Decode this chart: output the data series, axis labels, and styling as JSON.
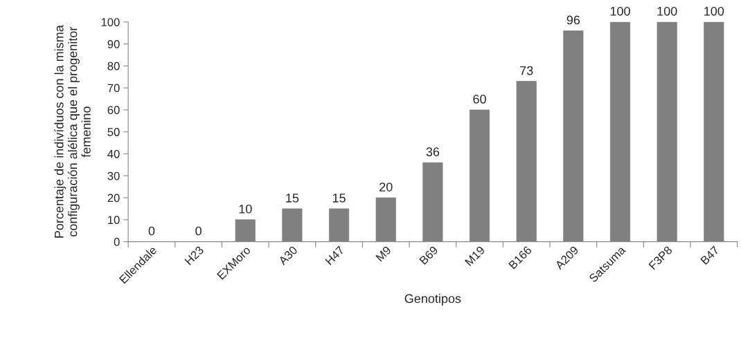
{
  "chart_data": {
    "type": "bar",
    "xlabel": "Genotipos",
    "ylabel": "Porcentaje de indivíduos con la misma\nconfiguración alélica que el progenitor\nfemenino",
    "categories": [
      "Ellendale",
      "H23",
      "EXMoro",
      "A30",
      "H47",
      "M9",
      "B69",
      "M19",
      "B166",
      "A209",
      "Satsuma",
      "F3P8",
      "B47"
    ],
    "values": [
      0,
      0,
      10,
      15,
      15,
      20,
      36,
      60,
      73,
      96,
      100,
      100,
      100
    ],
    "color": "#808080",
    "ylim": [
      0,
      100
    ],
    "yticks": [
      0,
      10,
      20,
      30,
      40,
      50,
      60,
      70,
      80,
      90,
      100
    ],
    "grid": false,
    "data_labels": true,
    "legend": false
  }
}
